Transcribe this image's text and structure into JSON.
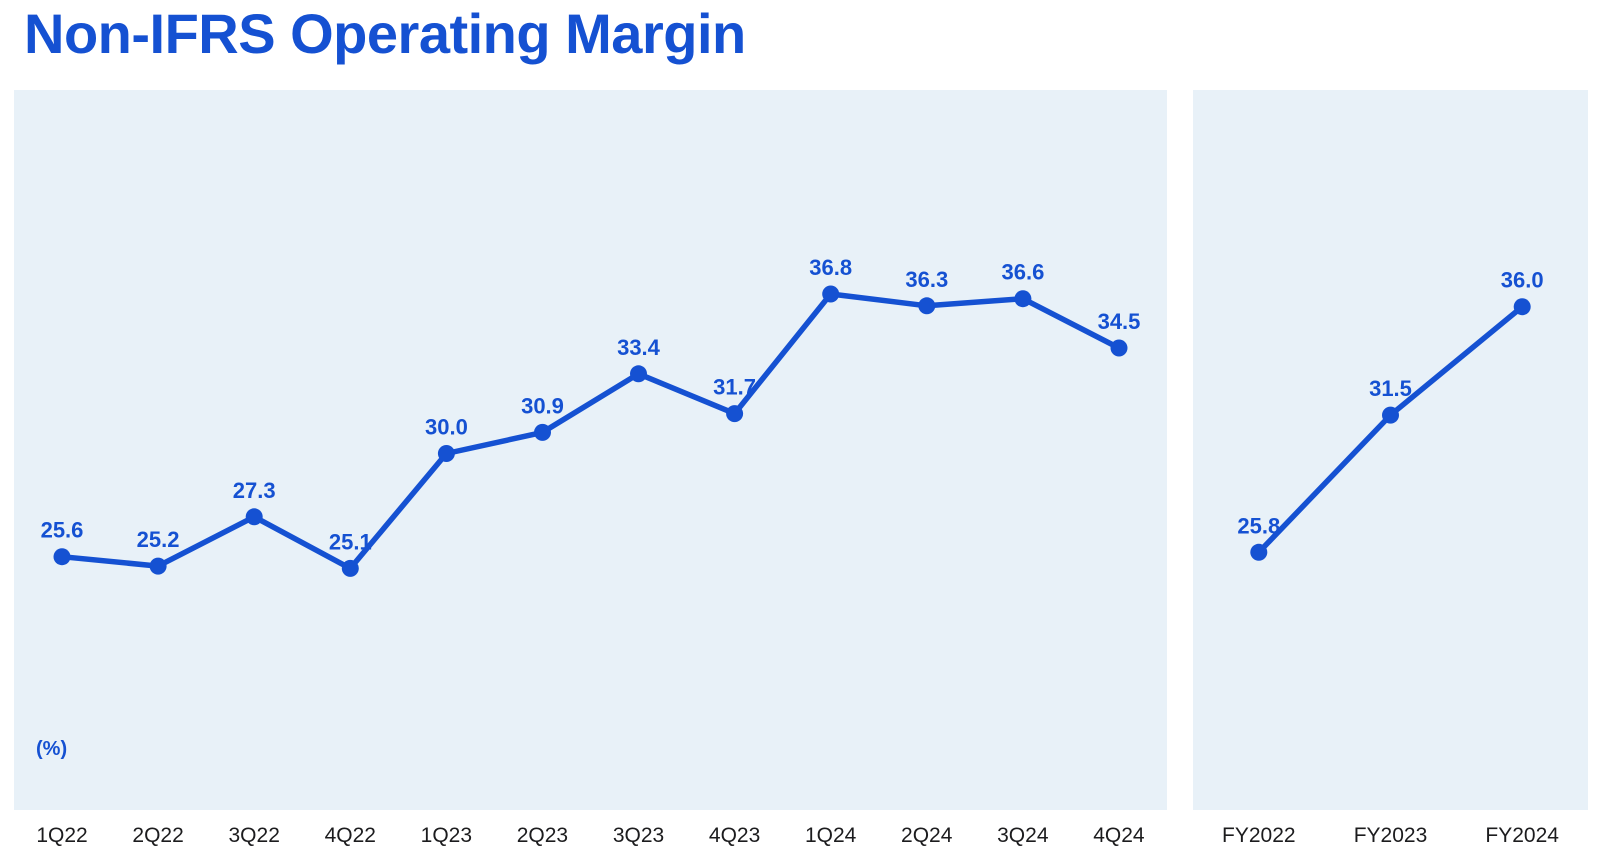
{
  "page": {
    "title": "Non-IFRS Operating Margin"
  },
  "colors": {
    "accent": "#1551d2",
    "title": "#1551d2",
    "panel_bg": "#e8f1f8",
    "axis_text": "#1c1c1e"
  },
  "chart_data": [
    {
      "type": "line",
      "name": "quarterly-non-ifrs-operating-margin",
      "title": "Non-IFRS Operating Margin",
      "ylabel": "(%)",
      "categories": [
        "1Q22",
        "2Q22",
        "3Q22",
        "4Q22",
        "1Q23",
        "2Q23",
        "3Q23",
        "4Q23",
        "1Q24",
        "2Q24",
        "3Q24",
        "4Q24"
      ],
      "values": [
        25.6,
        25.2,
        27.3,
        25.1,
        30.0,
        30.9,
        33.4,
        31.7,
        36.8,
        36.3,
        36.6,
        34.5
      ],
      "ylim": [
        14.8,
        45.5
      ],
      "grid": false,
      "legend": "none",
      "markers": true,
      "data_labels": true
    },
    {
      "type": "line",
      "name": "annual-non-ifrs-operating-margin",
      "categories": [
        "FY2022",
        "FY2023",
        "FY2024"
      ],
      "values": [
        25.8,
        31.5,
        36.0
      ],
      "ylim": [
        15.1,
        45.0
      ],
      "grid": false,
      "legend": "none",
      "markers": true,
      "data_labels": true
    }
  ]
}
